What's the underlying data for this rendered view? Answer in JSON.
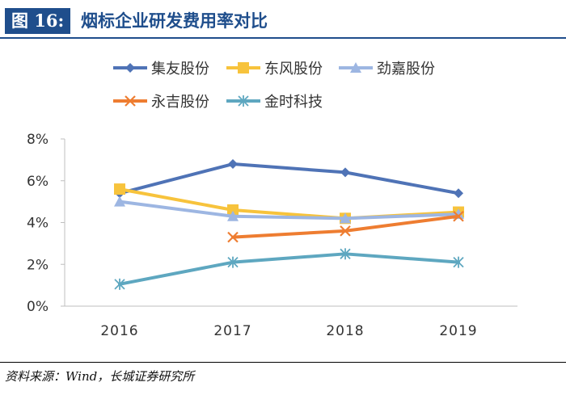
{
  "figure": {
    "label": "图 16:",
    "title": "烟标企业研发费用率对比"
  },
  "source": "资料来源：Wind，长城证券研究所",
  "chart_data": {
    "type": "line",
    "categories": [
      "2016",
      "2017",
      "2018",
      "2019"
    ],
    "yticks": [
      "0%",
      "2%",
      "4%",
      "6%",
      "8%"
    ],
    "ylim": [
      0,
      8
    ],
    "unit": "%",
    "grid": false,
    "legend_position": "top",
    "series": [
      {
        "name": "集友股份",
        "color": "#4f73b6",
        "marker": "diamond",
        "values": [
          5.4,
          6.8,
          6.4,
          5.4
        ]
      },
      {
        "name": "东风股份",
        "color": "#f7c33c",
        "marker": "square",
        "values": [
          5.6,
          4.6,
          4.2,
          4.5
        ]
      },
      {
        "name": "劲嘉股份",
        "color": "#9db6e2",
        "marker": "triangle",
        "values": [
          5.0,
          4.3,
          4.2,
          4.4
        ]
      },
      {
        "name": "永吉股份",
        "color": "#ee7d31",
        "marker": "x",
        "values": [
          null,
          3.3,
          3.6,
          4.3
        ]
      },
      {
        "name": "金时科技",
        "color": "#5ea7c0",
        "marker": "asterisk",
        "values": [
          1.05,
          2.1,
          2.5,
          2.1
        ]
      }
    ]
  }
}
